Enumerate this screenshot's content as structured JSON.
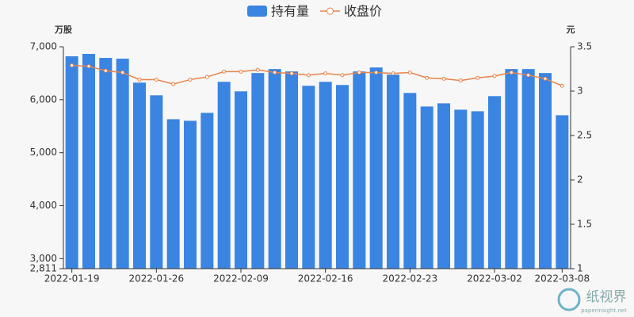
{
  "chart_data": {
    "type": "bar-line",
    "y_unit": "万股",
    "y2_unit": "元",
    "categories": [
      "2022-01-19",
      null,
      null,
      null,
      null,
      "2022-01-26",
      null,
      null,
      null,
      null,
      "2022-02-09",
      null,
      null,
      null,
      null,
      "2022-02-16",
      null,
      null,
      null,
      null,
      "2022-02-23",
      null,
      null,
      null,
      null,
      "2022-03-02",
      null,
      null,
      null,
      "2022-03-08"
    ],
    "series": [
      {
        "name": "持有量",
        "type": "bar",
        "color": "#3a84e2",
        "values": [
          6820,
          6865,
          6790,
          6775,
          6323,
          6083,
          5632,
          5602,
          5752,
          6338,
          6158,
          6504,
          6579,
          6534,
          6263,
          6338,
          6278,
          6534,
          6609,
          6474,
          6128,
          5872,
          5932,
          5812,
          5782,
          6068,
          6579,
          6579,
          6504,
          5707
        ]
      },
      {
        "name": "收盘价",
        "type": "line",
        "axis": "y2",
        "color": "#e8834a",
        "values": [
          3.29,
          3.28,
          3.23,
          3.21,
          3.13,
          3.13,
          3.08,
          3.13,
          3.16,
          3.22,
          3.22,
          3.24,
          3.21,
          3.2,
          3.18,
          3.2,
          3.18,
          3.21,
          3.21,
          3.2,
          3.21,
          3.15,
          3.14,
          3.12,
          3.15,
          3.17,
          3.21,
          3.18,
          3.14,
          3.06
        ]
      }
    ],
    "ylim": [
      2811,
      7000
    ],
    "yticks": [
      {
        "value": 2811,
        "label": "2,811"
      },
      {
        "value": 3000,
        "label": "3,000"
      },
      {
        "value": 4000,
        "label": "4,000"
      },
      {
        "value": 5000,
        "label": "5,000"
      },
      {
        "value": 6000,
        "label": "6,000"
      },
      {
        "value": 7000,
        "label": "7,000"
      }
    ],
    "y2lim": [
      1,
      3.5
    ],
    "y2ticks": [
      1,
      1.5,
      2,
      2.5,
      3,
      3.5
    ],
    "watermark": {
      "name": "纸视界",
      "url": "paperinsight.net"
    }
  }
}
